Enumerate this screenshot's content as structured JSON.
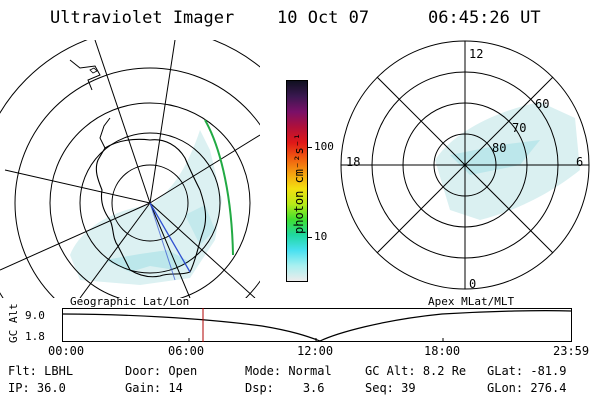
{
  "header": {
    "instrument": "Ultraviolet Imager",
    "date": "10 Oct 07",
    "time": "06:45:26 UT"
  },
  "colorbar": {
    "unit_label": "photon cm⁻²s⁻¹",
    "ticks": [
      "100",
      "10"
    ],
    "colors": [
      "#101020",
      "#3a1850",
      "#7a1068",
      "#b0103a",
      "#e01818",
      "#f05a10",
      "#f6a010",
      "#f4e010",
      "#b8ea18",
      "#40e030",
      "#20d8a0",
      "#48e0f0",
      "#a8f0f0",
      "#ececec"
    ]
  },
  "panels": {
    "left_label": "Geographic Lat/Lon",
    "right_label": "Apex MLat/MLT",
    "mlt_labels": {
      "top": "12",
      "left": "18",
      "right": "6",
      "bottom": "0"
    },
    "mlat_labels": [
      "60",
      "70",
      "80"
    ]
  },
  "altitude_plot": {
    "ylabel": "GC Alt",
    "yticks": [
      "9.0",
      "1.8"
    ],
    "xticks": [
      "00:00",
      "06:00",
      "12:00",
      "18:00",
      "23:59"
    ]
  },
  "info": {
    "row1": [
      {
        "label": "Flt:",
        "value": "LBHL"
      },
      {
        "label": "Door:",
        "value": "Open"
      },
      {
        "label": "Mode:",
        "value": "Normal"
      },
      {
        "label": "GC Alt:",
        "value": "8.2 Re"
      },
      {
        "label": "GLat:",
        "value": "-81.9"
      }
    ],
    "row2": [
      {
        "label": "IP:",
        "value": "36.0"
      },
      {
        "label": "Gain:",
        "value": "14"
      },
      {
        "label": "Dsp:",
        "value": "3.6"
      },
      {
        "label": "Seq:",
        "value": "39"
      },
      {
        "label": "GLon:",
        "value": "276.4"
      }
    ]
  },
  "colors": {
    "aurora": "#b8e6ea",
    "aurora_dim": "#d6eef0",
    "current_time_marker": "#b00000",
    "track_green": "#22aa44",
    "track_blue": "#3050d0"
  }
}
